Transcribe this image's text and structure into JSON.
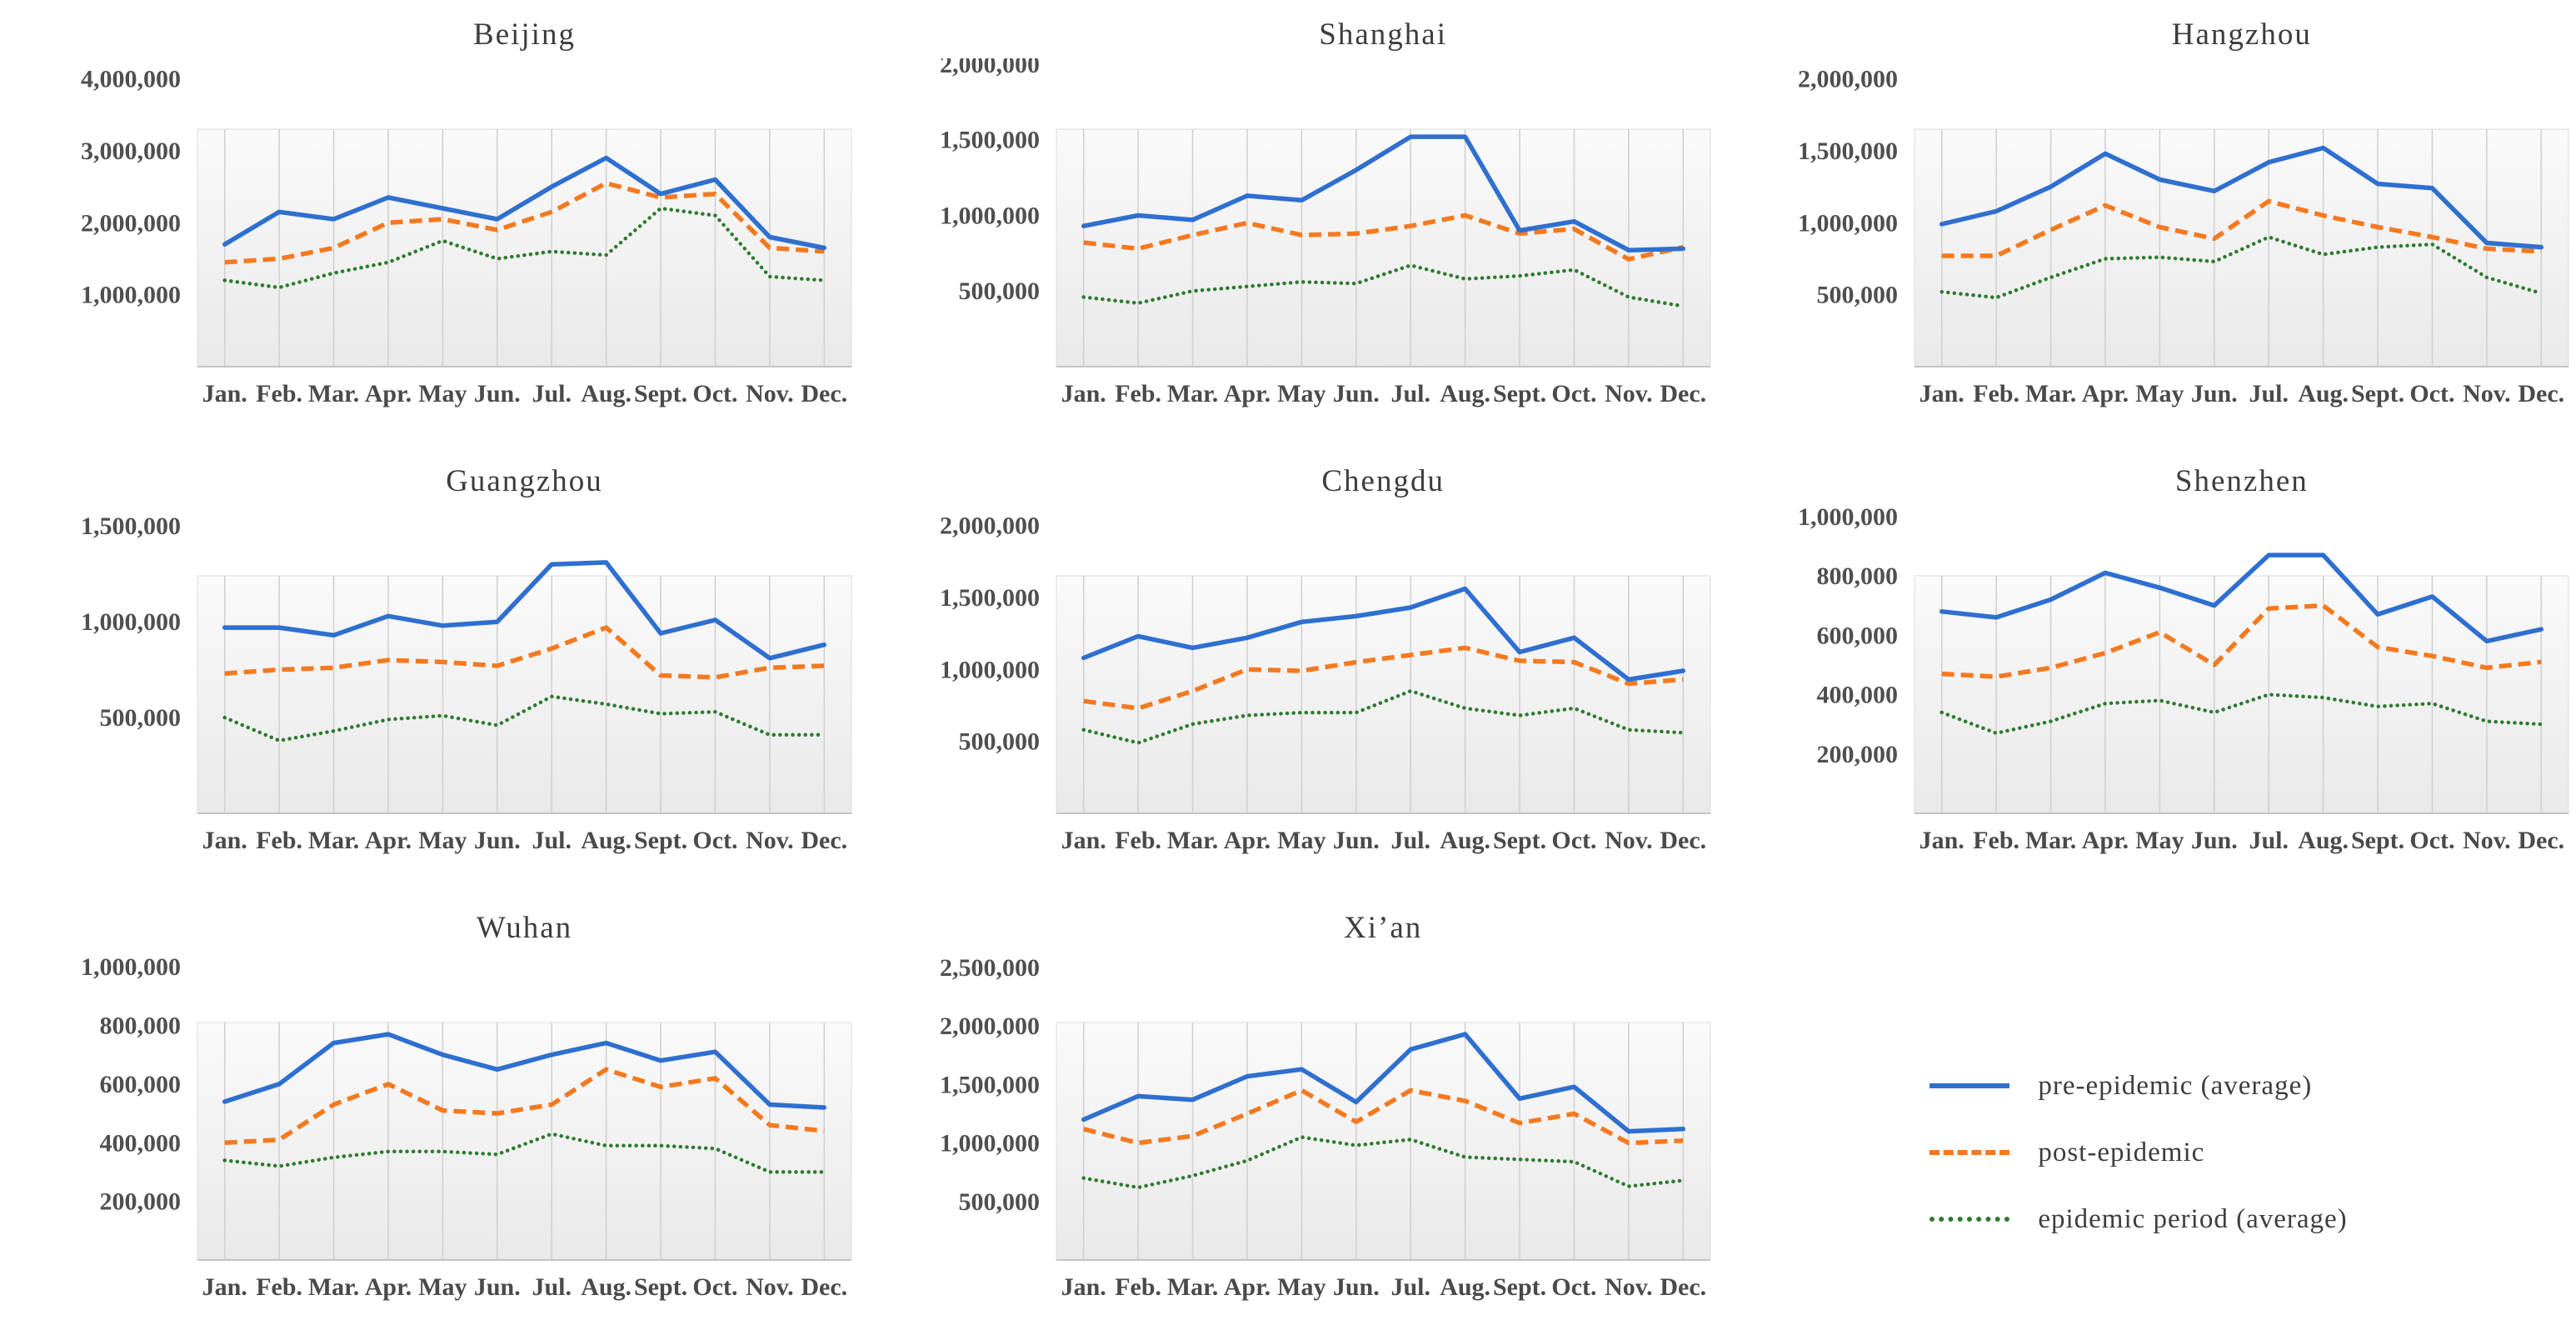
{
  "page": {
    "background": "#ffffff",
    "layout": "3x3 grid of small-multiple line charts, legend in bottom-right cell"
  },
  "colors": {
    "pre_epidemic": "#2e6fd0",
    "post_epidemic": "#f5791f",
    "epidemic_period": "#2d7a2f",
    "gridline": "#cfcfcf",
    "plot_border": "#dcdcdc",
    "axis_line": "#c4c4c4",
    "plot_bg_top": "#fafafa",
    "plot_bg_bottom": "#e9e9e9",
    "title_text": "#3d3d3d",
    "label_text": "#4f4f4f"
  },
  "months": [
    "Jan.",
    "Feb.",
    "Mar.",
    "Apr.",
    "May",
    "Jun.",
    "Jul.",
    "Aug.",
    "Sept.",
    "Oct.",
    "Nov.",
    "Dec."
  ],
  "legend": {
    "position": "bottom-right",
    "items": [
      {
        "label": "pre-epidemic (average)",
        "series": "pre_epidemic",
        "line_style": "solid"
      },
      {
        "label": "post-epidemic",
        "series": "post_epidemic",
        "line_style": "dashed"
      },
      {
        "label": "epidemic period (average)",
        "series": "epidemic_period",
        "line_style": "dotted"
      }
    ]
  },
  "chart_data": [
    {
      "type": "line",
      "title": "Beijing",
      "x": [
        "Jan.",
        "Feb.",
        "Mar.",
        "Apr.",
        "May",
        "Jun.",
        "Jul.",
        "Aug.",
        "Sept.",
        "Oct.",
        "Nov.",
        "Dec."
      ],
      "ylim": [
        0,
        4000000
      ],
      "plot_area_top_value": 3300000,
      "grid": "vertical-only",
      "y_ticks": [
        4000000,
        3000000,
        2000000,
        1000000
      ],
      "y_tick_labels": [
        "4,000,000",
        "3,000,000",
        "2,000,000",
        "1,000,000"
      ],
      "series": [
        {
          "name": "pre-epidemic (average)",
          "key": "pre_epidemic",
          "values": [
            1700000,
            2150000,
            2050000,
            2350000,
            2200000,
            2050000,
            2500000,
            2900000,
            2400000,
            2600000,
            1800000,
            1650000
          ]
        },
        {
          "name": "post-epidemic",
          "key": "post_epidemic",
          "values": [
            1450000,
            1500000,
            1650000,
            2000000,
            2050000,
            1900000,
            2150000,
            2550000,
            2350000,
            2400000,
            1650000,
            1600000
          ]
        },
        {
          "name": "epidemic period (average)",
          "key": "epidemic_period",
          "values": [
            1200000,
            1100000,
            1300000,
            1450000,
            1750000,
            1500000,
            1600000,
            1550000,
            2200000,
            2100000,
            1250000,
            1200000
          ]
        }
      ]
    },
    {
      "type": "line",
      "title": "Shanghai",
      "x": [
        "Jan.",
        "Feb.",
        "Mar.",
        "Apr.",
        "May",
        "Jun.",
        "Jul.",
        "Aug.",
        "Sept.",
        "Oct.",
        "Nov.",
        "Dec."
      ],
      "ylim": [
        0,
        2000000
      ],
      "plot_area_top_value": 1570000,
      "grid": "vertical-only",
      "y_ticks": [
        2000000,
        1500000,
        1000000,
        500000
      ],
      "y_tick_labels": [
        "2,000,000",
        "1,500,000",
        "1,000,000",
        "500,000"
      ],
      "series": [
        {
          "name": "pre-epidemic (average)",
          "key": "pre_epidemic",
          "values": [
            930000,
            1000000,
            970000,
            1130000,
            1100000,
            1300000,
            1520000,
            1520000,
            900000,
            960000,
            770000,
            780000
          ]
        },
        {
          "name": "post-epidemic",
          "key": "post_epidemic",
          "values": [
            820000,
            780000,
            870000,
            950000,
            870000,
            880000,
            930000,
            1000000,
            880000,
            910000,
            710000,
            790000
          ]
        },
        {
          "name": "epidemic period (average)",
          "key": "epidemic_period",
          "values": [
            460000,
            420000,
            500000,
            530000,
            560000,
            550000,
            670000,
            580000,
            600000,
            640000,
            460000,
            400000
          ]
        }
      ]
    },
    {
      "type": "line",
      "title": "Hangzhou",
      "x": [
        "Jan.",
        "Feb.",
        "Mar.",
        "Apr.",
        "May",
        "Jun.",
        "Jul.",
        "Aug.",
        "Sept.",
        "Oct.",
        "Nov.",
        "Dec."
      ],
      "ylim": [
        0,
        2000000
      ],
      "plot_area_top_value": 1650000,
      "grid": "vertical-only",
      "y_ticks": [
        2000000,
        1500000,
        1000000,
        500000
      ],
      "y_tick_labels": [
        "2,000,000",
        "1,500,000",
        "1,000,000",
        "500,000"
      ],
      "series": [
        {
          "name": "pre-epidemic (average)",
          "key": "pre_epidemic",
          "values": [
            990000,
            1080000,
            1250000,
            1480000,
            1300000,
            1220000,
            1420000,
            1520000,
            1270000,
            1240000,
            860000,
            830000
          ]
        },
        {
          "name": "post-epidemic",
          "key": "post_epidemic",
          "values": [
            770000,
            770000,
            950000,
            1120000,
            970000,
            890000,
            1150000,
            1050000,
            970000,
            900000,
            820000,
            800000
          ]
        },
        {
          "name": "epidemic period (average)",
          "key": "epidemic_period",
          "values": [
            520000,
            480000,
            620000,
            750000,
            760000,
            730000,
            900000,
            780000,
            830000,
            850000,
            620000,
            510000
          ]
        }
      ]
    },
    {
      "type": "line",
      "title": "Guangzhou",
      "x": [
        "Jan.",
        "Feb.",
        "Mar.",
        "Apr.",
        "May",
        "Jun.",
        "Jul.",
        "Aug.",
        "Sept.",
        "Oct.",
        "Nov.",
        "Dec."
      ],
      "ylim": [
        0,
        1500000
      ],
      "plot_area_top_value": 1240000,
      "grid": "vertical-only",
      "y_ticks": [
        1500000,
        1000000,
        500000
      ],
      "y_tick_labels": [
        "1,500,000",
        "1,000,000",
        "500,000"
      ],
      "series": [
        {
          "name": "pre-epidemic (average)",
          "key": "pre_epidemic",
          "values": [
            970000,
            970000,
            930000,
            1030000,
            980000,
            1000000,
            1300000,
            1310000,
            940000,
            1010000,
            810000,
            880000
          ]
        },
        {
          "name": "post-epidemic",
          "key": "post_epidemic",
          "values": [
            730000,
            750000,
            760000,
            800000,
            790000,
            770000,
            860000,
            970000,
            720000,
            710000,
            760000,
            770000
          ]
        },
        {
          "name": "epidemic period (average)",
          "key": "epidemic_period",
          "values": [
            500000,
            380000,
            430000,
            490000,
            510000,
            460000,
            610000,
            570000,
            520000,
            530000,
            410000,
            410000
          ]
        }
      ]
    },
    {
      "type": "line",
      "title": "Chengdu",
      "x": [
        "Jan.",
        "Feb.",
        "Mar.",
        "Apr.",
        "May",
        "Jun.",
        "Jul.",
        "Aug.",
        "Sept.",
        "Oct.",
        "Nov.",
        "Dec."
      ],
      "ylim": [
        0,
        2000000
      ],
      "plot_area_top_value": 1650000,
      "grid": "vertical-only",
      "y_ticks": [
        2000000,
        1500000,
        1000000,
        500000
      ],
      "y_tick_labels": [
        "2,000,000",
        "1,500,000",
        "1,000,000",
        "500,000"
      ],
      "series": [
        {
          "name": "pre-epidemic (average)",
          "key": "pre_epidemic",
          "values": [
            1080000,
            1230000,
            1150000,
            1220000,
            1330000,
            1370000,
            1430000,
            1560000,
            1120000,
            1220000,
            930000,
            990000
          ]
        },
        {
          "name": "post-epidemic",
          "key": "post_epidemic",
          "values": [
            780000,
            730000,
            850000,
            1000000,
            990000,
            1050000,
            1100000,
            1150000,
            1060000,
            1050000,
            900000,
            930000
          ]
        },
        {
          "name": "epidemic period (average)",
          "key": "epidemic_period",
          "values": [
            580000,
            490000,
            620000,
            680000,
            700000,
            700000,
            850000,
            730000,
            680000,
            730000,
            580000,
            560000
          ]
        }
      ]
    },
    {
      "type": "line",
      "title": "Shenzhen",
      "x": [
        "Jan.",
        "Feb.",
        "Mar.",
        "Apr.",
        "May",
        "Jun.",
        "Jul.",
        "Aug.",
        "Sept.",
        "Oct.",
        "Nov.",
        "Dec."
      ],
      "ylim": [
        0,
        1000000
      ],
      "plot_area_top_value": 800000,
      "grid": "vertical-only",
      "y_ticks": [
        1000000,
        800000,
        600000,
        400000,
        200000
      ],
      "y_tick_labels": [
        "1,000,000",
        "800,000",
        "600,000",
        "400,000",
        "200,000"
      ],
      "series": [
        {
          "name": "pre-epidemic (average)",
          "key": "pre_epidemic",
          "values": [
            680000,
            660000,
            720000,
            810000,
            760000,
            700000,
            870000,
            870000,
            670000,
            730000,
            580000,
            620000
          ]
        },
        {
          "name": "post-epidemic",
          "key": "post_epidemic",
          "values": [
            470000,
            460000,
            490000,
            540000,
            610000,
            500000,
            690000,
            700000,
            560000,
            530000,
            490000,
            510000
          ]
        },
        {
          "name": "epidemic period (average)",
          "key": "epidemic_period",
          "values": [
            340000,
            270000,
            310000,
            370000,
            380000,
            340000,
            400000,
            390000,
            360000,
            370000,
            310000,
            300000
          ]
        }
      ]
    },
    {
      "type": "line",
      "title": "Wuhan",
      "x": [
        "Jan.",
        "Feb.",
        "Mar.",
        "Apr.",
        "May",
        "Jun.",
        "Jul.",
        "Aug.",
        "Sept.",
        "Oct.",
        "Nov.",
        "Dec."
      ],
      "ylim": [
        0,
        1000000
      ],
      "plot_area_top_value": 810000,
      "grid": "vertical-only",
      "y_ticks": [
        1000000,
        800000,
        600000,
        400000,
        200000
      ],
      "y_tick_labels": [
        "1,000,000",
        "800,000",
        "600,000",
        "400,000",
        "200,000"
      ],
      "series": [
        {
          "name": "pre-epidemic (average)",
          "key": "pre_epidemic",
          "values": [
            540000,
            600000,
            740000,
            770000,
            700000,
            650000,
            700000,
            740000,
            680000,
            710000,
            530000,
            520000
          ]
        },
        {
          "name": "post-epidemic",
          "key": "post_epidemic",
          "values": [
            400000,
            410000,
            530000,
            600000,
            510000,
            500000,
            530000,
            650000,
            590000,
            620000,
            460000,
            440000
          ]
        },
        {
          "name": "epidemic period (average)",
          "key": "epidemic_period",
          "values": [
            340000,
            320000,
            350000,
            370000,
            370000,
            360000,
            430000,
            390000,
            390000,
            380000,
            300000,
            300000
          ]
        }
      ]
    },
    {
      "type": "line",
      "title": "Xi’an",
      "x": [
        "Jan.",
        "Feb.",
        "Mar.",
        "Apr.",
        "May",
        "Jun.",
        "Jul.",
        "Aug.",
        "Sept.",
        "Oct.",
        "Nov.",
        "Dec."
      ],
      "ylim": [
        0,
        2500000
      ],
      "plot_area_top_value": 2030000,
      "grid": "vertical-only",
      "y_ticks": [
        2500000,
        2000000,
        1500000,
        1000000,
        500000
      ],
      "y_tick_labels": [
        "2,500,000",
        "2,000,000",
        "1,500,000",
        "1,000,000",
        "500,000"
      ],
      "series": [
        {
          "name": "pre-epidemic (average)",
          "key": "pre_epidemic",
          "values": [
            1200000,
            1400000,
            1370000,
            1570000,
            1630000,
            1350000,
            1800000,
            1930000,
            1380000,
            1480000,
            1100000,
            1120000
          ]
        },
        {
          "name": "post-epidemic",
          "key": "post_epidemic",
          "values": [
            1120000,
            1000000,
            1060000,
            1250000,
            1450000,
            1180000,
            1450000,
            1360000,
            1170000,
            1250000,
            1000000,
            1020000
          ]
        },
        {
          "name": "epidemic period (average)",
          "key": "epidemic_period",
          "values": [
            700000,
            620000,
            720000,
            850000,
            1050000,
            980000,
            1030000,
            880000,
            860000,
            840000,
            630000,
            680000
          ]
        }
      ]
    }
  ]
}
